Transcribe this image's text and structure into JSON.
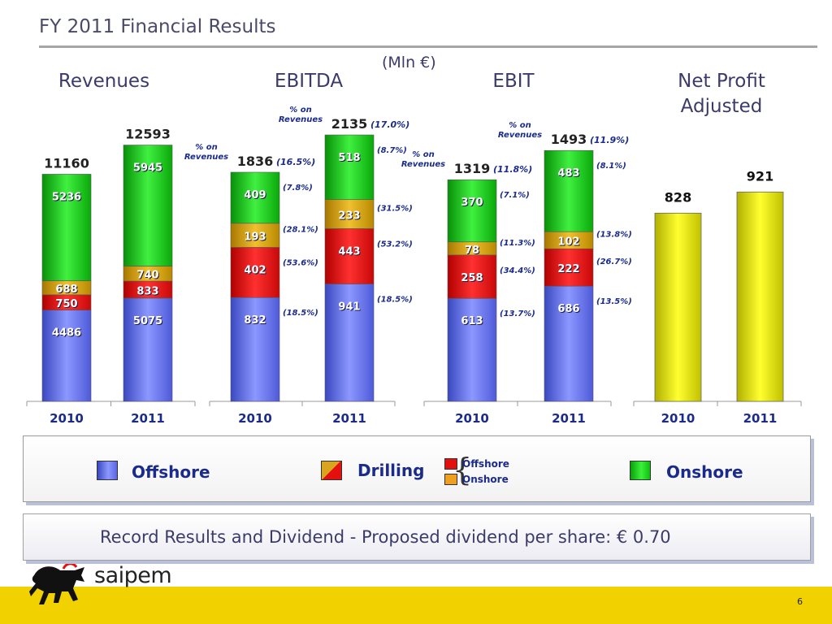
{
  "title": "FY 2011 Financial Results",
  "units": "(Mln €)",
  "colors": {
    "offshore": "#6a78f0",
    "drilling_offshore": "#e41010",
    "drilling_onshore": "#d9a520",
    "onshore": "#12d012",
    "net_profit": "#e0e000",
    "label": "#1a2b8c"
  },
  "chart_data": [
    {
      "type": "bar",
      "stacked": true,
      "title": "Revenues",
      "categories": [
        "2010",
        "2011"
      ],
      "totals": [
        "11160",
        "12593"
      ],
      "series": [
        {
          "name": "Offshore",
          "values": [
            4486,
            5075
          ],
          "labels": [
            "4486",
            "5075"
          ]
        },
        {
          "name": "Drilling Offshore",
          "values": [
            750,
            833
          ],
          "labels": [
            "750",
            "833"
          ]
        },
        {
          "name": "Drilling Onshore",
          "values": [
            688,
            740
          ],
          "labels": [
            "688",
            "740"
          ]
        },
        {
          "name": "Onshore",
          "values": [
            5236,
            5945
          ],
          "labels": [
            "5236",
            "5945"
          ]
        }
      ]
    },
    {
      "type": "bar",
      "stacked": true,
      "title": "EBITDA",
      "margin_header": "% on Revenues",
      "categories": [
        "2010",
        "2011"
      ],
      "totals": [
        "1836",
        "2135"
      ],
      "total_margins": [
        "(16.5%)",
        "(17.0%)"
      ],
      "series": [
        {
          "name": "Offshore",
          "values": [
            832,
            941
          ],
          "labels": [
            "832",
            "941"
          ],
          "margins": [
            "(18.5%)",
            "(18.5%)"
          ]
        },
        {
          "name": "Drilling Offshore",
          "values": [
            402,
            443
          ],
          "labels": [
            "402",
            "443"
          ],
          "margins": [
            "(53.6%)",
            "(53.2%)"
          ]
        },
        {
          "name": "Drilling Onshore",
          "values": [
            193,
            233
          ],
          "labels": [
            "193",
            "233"
          ],
          "margins": [
            "(28.1%)",
            "(31.5%)"
          ]
        },
        {
          "name": "Onshore",
          "values": [
            409,
            518
          ],
          "labels": [
            "409",
            "518"
          ],
          "margins": [
            "(7.8%)",
            "(8.7%)"
          ]
        }
      ]
    },
    {
      "type": "bar",
      "stacked": true,
      "title": "EBIT",
      "margin_header": "% on Revenues",
      "categories": [
        "2010",
        "2011"
      ],
      "totals": [
        "1319",
        "1493"
      ],
      "total_margins": [
        "(11.8%)",
        "(11.9%)"
      ],
      "series": [
        {
          "name": "Offshore",
          "values": [
            613,
            686
          ],
          "labels": [
            "613",
            "686"
          ],
          "margins": [
            "(13.7%)",
            "(13.5%)"
          ]
        },
        {
          "name": "Drilling Offshore",
          "values": [
            258,
            222
          ],
          "labels": [
            "258",
            "222"
          ],
          "margins": [
            "(34.4%)",
            "(26.7%)"
          ]
        },
        {
          "name": "Drilling Onshore",
          "values": [
            78,
            102
          ],
          "labels": [
            "78",
            "102"
          ],
          "margins": [
            "(11.3%)",
            "(13.8%)"
          ]
        },
        {
          "name": "Onshore",
          "values": [
            370,
            483
          ],
          "labels": [
            "370",
            "483"
          ],
          "margins": [
            "(7.1%)",
            "(8.1%)"
          ]
        }
      ]
    },
    {
      "type": "bar",
      "stacked": false,
      "title": "Net Profit Adjusted",
      "categories": [
        "2010",
        "2011"
      ],
      "values": [
        828,
        921
      ],
      "labels": [
        "828",
        "921"
      ]
    }
  ],
  "legend": {
    "offshore": "Offshore",
    "drilling": "Drilling",
    "drilling_offshore": "Offshore",
    "drilling_onshore": "Onshore",
    "onshore": "Onshore"
  },
  "footer": {
    "text": "Record Results and Dividend - Proposed dividend per share: € 0.70",
    "brand": "saipem",
    "page": "6"
  }
}
